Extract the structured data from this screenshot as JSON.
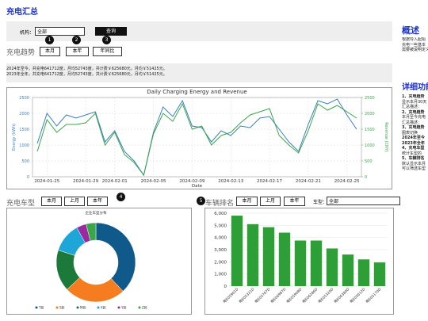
{
  "header": {
    "title": "充电汇总"
  },
  "filter": {
    "label": "机构：",
    "select": "全部",
    "button": "查询"
  },
  "trend": {
    "title": "充电趋势",
    "buttons": [
      "本月",
      "本年",
      "年同比"
    ],
    "badges": [
      "1",
      "2",
      "3"
    ],
    "summary": [
      "2024年至今，共充电641712度，月均52743度，共计费￥625680元，月均￥51425元。",
      "2023年全年，共充电641712度，月均52743度，共计费￥625680元，月均￥51425元。"
    ]
  },
  "models": {
    "title": "充电车型",
    "buttons": [
      "本月",
      "上月",
      "本年"
    ],
    "badge": "4"
  },
  "ranking": {
    "title": "车辆排名",
    "buttons": [
      "本月",
      "上月",
      "本年"
    ],
    "badge": "5",
    "filter_label": "车型：",
    "select": "全部"
  },
  "sidebar": {
    "overview_title": "概述",
    "overview": [
      "根据导入起始",
      "充电一些基本",
      "需要被说明定义"
    ],
    "details_title": "详细功能",
    "details": [
      "1、充电趋势",
      "显示本月30天",
      "汇总描述：",
      "2、充电趋势",
      "本月至今充电",
      "汇总描述：",
      "3、充电趋势",
      "图表切换",
      "2024年至今",
      "2023年全年",
      "4、充电车型",
      "统计车型的",
      "5、车辆排名",
      "默认显示本月",
      "可以筛选车型"
    ]
  },
  "chart_data": [
    {
      "type": "line",
      "title": "Daily Charging Energy and Revenue",
      "x_label": "Date",
      "y_label": "Energy (kWh)",
      "y2_label": "Revenue (CNY)",
      "x": [
        "2024-01-24",
        "2024-01-25",
        "2024-01-26",
        "2024-01-27",
        "2024-01-28",
        "2024-01-29",
        "2024-01-30",
        "2024-01-31",
        "2024-02-01",
        "2024-02-02",
        "2024-02-03",
        "2024-02-04",
        "2024-02-05",
        "2024-02-06",
        "2024-02-07",
        "2024-02-08",
        "2024-02-09",
        "2024-02-10",
        "2024-02-11",
        "2024-02-12",
        "2024-02-13",
        "2024-02-14",
        "2024-02-15",
        "2024-02-16",
        "2024-02-17",
        "2024-02-18",
        "2024-02-19",
        "2024-02-20",
        "2024-02-21",
        "2024-02-22",
        "2024-02-23",
        "2024-02-24",
        "2024-02-25",
        "2024-02-26"
      ],
      "xticks": [
        "2024-01-25",
        "2024-01-29",
        "2024-02-01",
        "2024-02-05",
        "2024-02-09",
        "2024-02-13",
        "2024-02-17",
        "2024-02-21",
        "2024-02-25"
      ],
      "series": [
        {
          "name": "Energy (kWh)",
          "color": "#3a7fc1",
          "values": [
            1050,
            2000,
            1600,
            1950,
            1850,
            1950,
            2050,
            1100,
            1450,
            800,
            500,
            50,
            1400,
            2200,
            1900,
            2400,
            1600,
            1550,
            1100,
            1450,
            1300,
            1600,
            1550,
            1850,
            1900,
            1500,
            1100,
            800,
            1650,
            2400,
            2300,
            2450,
            1950,
            1500
          ]
        },
        {
          "name": "Revenue (CNY)",
          "color": "#3aa64a",
          "axis": "y2",
          "values": [
            800,
            1800,
            1400,
            1650,
            1650,
            1700,
            2000,
            1000,
            1400,
            700,
            450,
            50,
            1350,
            2000,
            1750,
            2300,
            1500,
            1600,
            1000,
            1300,
            1400,
            1700,
            1950,
            2050,
            2150,
            1300,
            1000,
            750,
            1450,
            2300,
            2100,
            2250,
            2050,
            1850
          ]
        }
      ],
      "ylim": [
        0,
        2500
      ],
      "yticks": [
        0,
        500,
        1000,
        1500,
        2000,
        2500
      ],
      "y2lim": [
        0,
        2500
      ],
      "y2ticks": [
        0,
        500,
        1000,
        1500,
        2000,
        2500
      ],
      "grid": true
    },
    {
      "type": "pie",
      "title": "企业车型分布",
      "donut": true,
      "categories": [
        "T款",
        "S款",
        "M款",
        "X款",
        "Y款",
        "Z款"
      ],
      "values": [
        38,
        25,
        17,
        12,
        4,
        4
      ],
      "colors": [
        "#0f5a8a",
        "#f57c1f",
        "#1b7a3a",
        "#1fa6d9",
        "#9b2a9e",
        "#3aa64a"
      ]
    },
    {
      "type": "bar",
      "color": "#2e9e36",
      "categories": [
        "粤E05901D",
        "粤E05321D",
        "粤E05767D",
        "粤E06987D",
        "粤E05908D",
        "粤E06286D",
        "粤E05320D",
        "粤E06380D",
        "粤E05612D",
        "粤E05170D"
      ],
      "values": [
        5800,
        5100,
        4850,
        4400,
        3750,
        3750,
        3100,
        2600,
        2200,
        1950
      ],
      "ylim": [
        0,
        6000
      ],
      "yticks": [
        0,
        {
          "value": 1000,
          "label": "1,000"
        },
        {
          "value": 2000,
          "label": "2,000"
        },
        {
          "value": 3000,
          "label": "3,000"
        },
        {
          "value": 4000,
          "label": "4,000"
        },
        {
          "value": 5000,
          "label": "5,000"
        },
        {
          "value": 6000,
          "label": "6,000"
        }
      ],
      "grid": true
    }
  ]
}
